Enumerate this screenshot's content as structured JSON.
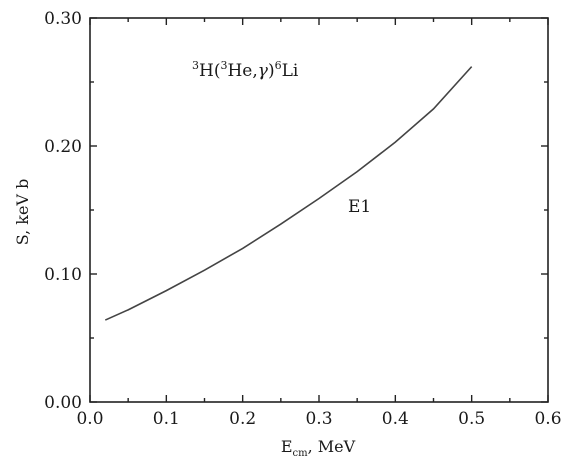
{
  "chart_data": {
    "type": "line",
    "title": "",
    "xlabel": "",
    "ylabel": "S,  keV b",
    "xlim": [
      0.0,
      0.6
    ],
    "ylim": [
      0.0,
      0.3
    ],
    "x_ticks": [
      "0.0",
      "0.1",
      "0.2",
      "0.3",
      "0.4",
      "0.5",
      "0.6"
    ],
    "y_ticks": [
      "0.00",
      "0.10",
      "0.20",
      "0.30"
    ],
    "grid": false,
    "xlabel_parts": {
      "main": "E",
      "sub": "cm",
      "rest": ",  MeV"
    },
    "reaction_label": {
      "s1": "3",
      "t1": "H(",
      "s2": "3",
      "t2": "He,",
      "t3": "γ",
      "t4": ")",
      "s3": "6",
      "t5": "Li"
    },
    "series": [
      {
        "name": "E1",
        "x": [
          0.02,
          0.05,
          0.1,
          0.15,
          0.2,
          0.25,
          0.3,
          0.35,
          0.4,
          0.45,
          0.5
        ],
        "y": [
          0.064,
          0.072,
          0.087,
          0.103,
          0.12,
          0.139,
          0.159,
          0.18,
          0.203,
          0.229,
          0.262
        ]
      }
    ]
  }
}
